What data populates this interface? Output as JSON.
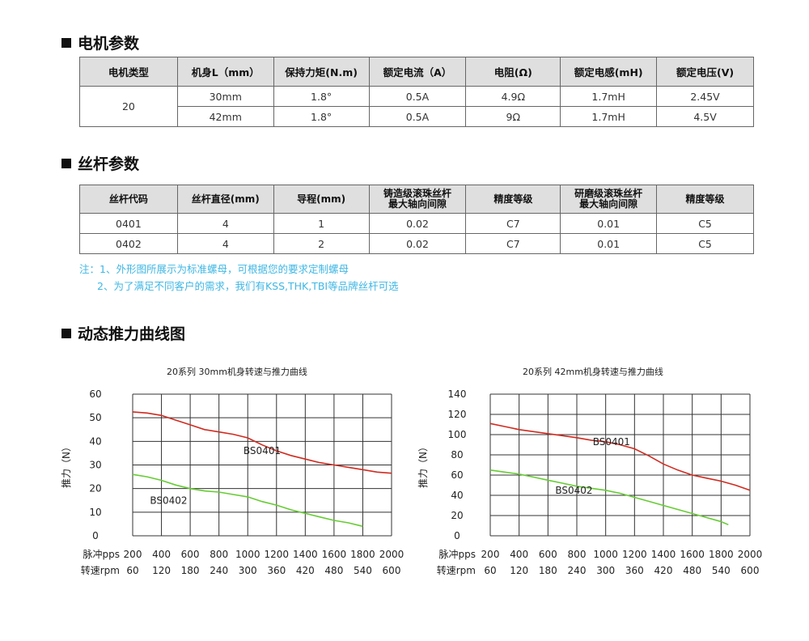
{
  "sections": {
    "motor": "电机参数",
    "screw": "丝杆参数",
    "curve": "动态推力曲线图"
  },
  "motor_table": {
    "headers": [
      "电机类型",
      "机身L（mm）",
      "保持力矩(N.m)",
      "额定电流（A）",
      "电阻(Ω)",
      "额定电感(mH)",
      "额定电压(V)"
    ],
    "type": "20",
    "rows": [
      [
        "30mm",
        "1.8°",
        "0.5A",
        "4.9Ω",
        "1.7mH",
        "2.45V"
      ],
      [
        "42mm",
        "1.8°",
        "0.5A",
        "9Ω",
        "1.7mH",
        "4.5V"
      ]
    ]
  },
  "screw_table": {
    "headers": [
      "丝杆代码",
      "丝杆直径(mm)",
      "导程(mm)",
      "铸造级滚珠丝杆\n最大轴向间隙",
      "精度等级",
      "研磨级滚珠丝杆\n最大轴向间隙",
      "精度等级"
    ],
    "rows": [
      [
        "0401",
        "4",
        "1",
        "0.02",
        "C7",
        "0.01",
        "C5"
      ],
      [
        "0402",
        "4",
        "2",
        "0.02",
        "C7",
        "0.01",
        "C5"
      ]
    ]
  },
  "notes": {
    "line1": "注：1、外形图所展示为标准螺母，可根据您的要求定制螺母",
    "line2": "2、为了满足不同客户的需求，我们有KSS,THK,TBI等品牌丝杆可选"
  },
  "chart_data": [
    {
      "type": "line",
      "title": "20系列 30mm机身转速与推力曲线",
      "ylabel": "推力（N）",
      "xlabel": "脉冲pps",
      "xlabel2": "转速rpm",
      "x_ticks": [
        200,
        400,
        600,
        800,
        1000,
        1200,
        1400,
        1600,
        1800,
        2000
      ],
      "x2_ticks": [
        60,
        120,
        180,
        240,
        300,
        360,
        420,
        480,
        540,
        600
      ],
      "xlim": [
        200,
        2000
      ],
      "ylim": [
        0,
        60
      ],
      "y_ticks": [
        0,
        10,
        20,
        30,
        40,
        50,
        60
      ],
      "grid": true,
      "series": [
        {
          "name": "BS0401",
          "color": "#d02b20",
          "points": [
            [
              200,
              52.5
            ],
            [
              300,
              52
            ],
            [
              400,
              51
            ],
            [
              500,
              49
            ],
            [
              600,
              47
            ],
            [
              700,
              45
            ],
            [
              800,
              44
            ],
            [
              900,
              43
            ],
            [
              1000,
              41.5
            ],
            [
              1100,
              38.5
            ],
            [
              1200,
              36
            ],
            [
              1300,
              34
            ],
            [
              1400,
              32.5
            ],
            [
              1500,
              31
            ],
            [
              1600,
              30
            ],
            [
              1700,
              29
            ],
            [
              1800,
              28
            ],
            [
              1900,
              27
            ],
            [
              2000,
              26.5
            ]
          ]
        },
        {
          "name": "BS0402",
          "color": "#66cc33",
          "points": [
            [
              200,
              26
            ],
            [
              300,
              25
            ],
            [
              400,
              23.5
            ],
            [
              500,
              21.5
            ],
            [
              600,
              20
            ],
            [
              700,
              19
            ],
            [
              800,
              18.5
            ],
            [
              900,
              17.5
            ],
            [
              1000,
              16.5
            ],
            [
              1100,
              14.5
            ],
            [
              1200,
              13
            ],
            [
              1300,
              11
            ],
            [
              1400,
              9.5
            ],
            [
              1500,
              8
            ],
            [
              1600,
              6.5
            ],
            [
              1700,
              5.5
            ],
            [
              1800,
              4
            ]
          ]
        }
      ]
    },
    {
      "type": "line",
      "title": "20系列 42mm机身转速与推力曲线",
      "ylabel": "推力（N）",
      "xlabel": "脉冲pps",
      "xlabel2": "转速rpm",
      "x_ticks": [
        200,
        400,
        600,
        800,
        1000,
        1200,
        1400,
        1600,
        1800,
        2000
      ],
      "x2_ticks": [
        60,
        120,
        180,
        240,
        300,
        360,
        420,
        480,
        540,
        600
      ],
      "xlim": [
        200,
        2000
      ],
      "ylim": [
        0,
        140
      ],
      "y_ticks": [
        0,
        20,
        40,
        60,
        80,
        100,
        120,
        140
      ],
      "grid": true,
      "series": [
        {
          "name": "BS0401",
          "color": "#d02b20",
          "points": [
            [
              200,
              111
            ],
            [
              300,
              108
            ],
            [
              400,
              105
            ],
            [
              500,
              103
            ],
            [
              600,
              101
            ],
            [
              700,
              99
            ],
            [
              800,
              97
            ],
            [
              900,
              94.5
            ],
            [
              1000,
              93
            ],
            [
              1100,
              90
            ],
            [
              1200,
              86
            ],
            [
              1300,
              79
            ],
            [
              1400,
              71
            ],
            [
              1500,
              65
            ],
            [
              1600,
              60
            ],
            [
              1700,
              57
            ],
            [
              1800,
              54
            ],
            [
              1900,
              50
            ],
            [
              2000,
              45
            ]
          ]
        },
        {
          "name": "BS0402",
          "color": "#66cc33",
          "points": [
            [
              200,
              65
            ],
            [
              300,
              63
            ],
            [
              400,
              61
            ],
            [
              500,
              58
            ],
            [
              600,
              55
            ],
            [
              700,
              52
            ],
            [
              800,
              49
            ],
            [
              900,
              47
            ],
            [
              1000,
              45
            ],
            [
              1100,
              42
            ],
            [
              1200,
              38
            ],
            [
              1300,
              34
            ],
            [
              1400,
              30
            ],
            [
              1500,
              26
            ],
            [
              1600,
              22
            ],
            [
              1700,
              18
            ],
            [
              1800,
              14
            ],
            [
              1850,
              11
            ]
          ]
        }
      ]
    }
  ]
}
